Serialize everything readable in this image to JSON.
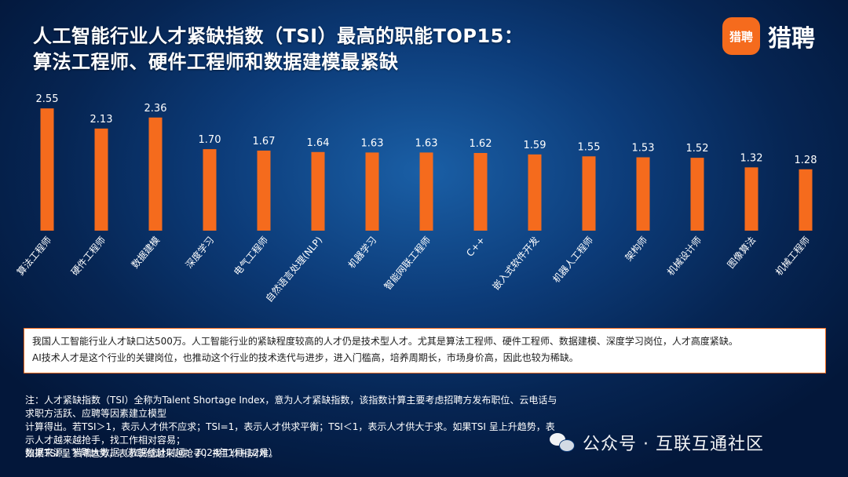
{
  "title": {
    "line1": "人工智能行业人才紧缺指数（TSI）最高的职能TOP15：",
    "line2": "算法工程师、硬件工程师和数据建模最紧缺"
  },
  "logo": {
    "badge": "猎聘",
    "text": "猎聘",
    "color": "#f56b1d"
  },
  "chart_data": {
    "type": "bar",
    "title": "人工智能行业人才紧缺指数（TSI）最高的职能TOP15：算法工程师、硬件工程师和数据建模最紧缺",
    "categories": [
      "算法工程师",
      "硬件工程师",
      "数据建模",
      "深度学习",
      "电气工程师",
      "自然语言处理(NLP)",
      "机器学习",
      "智能网联工程师",
      "C++",
      "嵌入式软件开发",
      "机器人工程师",
      "架构师",
      "机械设计师",
      "图像算法",
      "机械工程师"
    ],
    "values": [
      2.55,
      2.13,
      2.36,
      1.7,
      1.67,
      1.64,
      1.63,
      1.63,
      1.62,
      1.59,
      1.55,
      1.53,
      1.52,
      1.32,
      1.28
    ],
    "value_labels": [
      "2.55",
      "2.13",
      "2.36",
      "1.70",
      "1.67",
      "1.64",
      "1.63",
      "1.63",
      "1.62",
      "1.59",
      "1.55",
      "1.53",
      "1.52",
      "1.32",
      "1.28"
    ],
    "bar_color": "#f56b1d",
    "ylim": [
      0,
      2.7
    ],
    "grid": false,
    "xlabel": "",
    "ylabel": ""
  },
  "summary": {
    "line1": "我国人工智能行业人才缺口达500万。人工智能行业的紧缺程度较高的人才仍是技术型人才。尤其是算法工程师、硬件工程师、数据建模、深度学习岗位，人才高度紧缺。",
    "line2": "AI技术人才是这个行业的关键岗位，也推动这个行业的技术迭代与进步，进入门槛高，培养周期长，市场身价高，因此也较为稀缺。"
  },
  "notes": {
    "line1": "注：人才紧缺指数（TSI）全称为Talent Shortage Index，意为人才紧缺指数，该指数计算主要考虑招聘方发布职位、云电话与求职方活跃、应聘等因素建立模型",
    "line2": "计算得出。若TSI＞1，表示人才供不应求；TSI=1，表示人才供求平衡；TSI＜1，表示人才供大于求。如果TSI 呈上升趋势，表示人才越来越抢手，找工作相对容易；",
    "line3": "如果TSI 呈下降趋势，表示职位越来越抢手，找工作相对难。"
  },
  "source": "数据来源：猎聘大数据（数据统计时间：2024年1月-12月）",
  "watermark": "公众号 · 互联互通社区"
}
